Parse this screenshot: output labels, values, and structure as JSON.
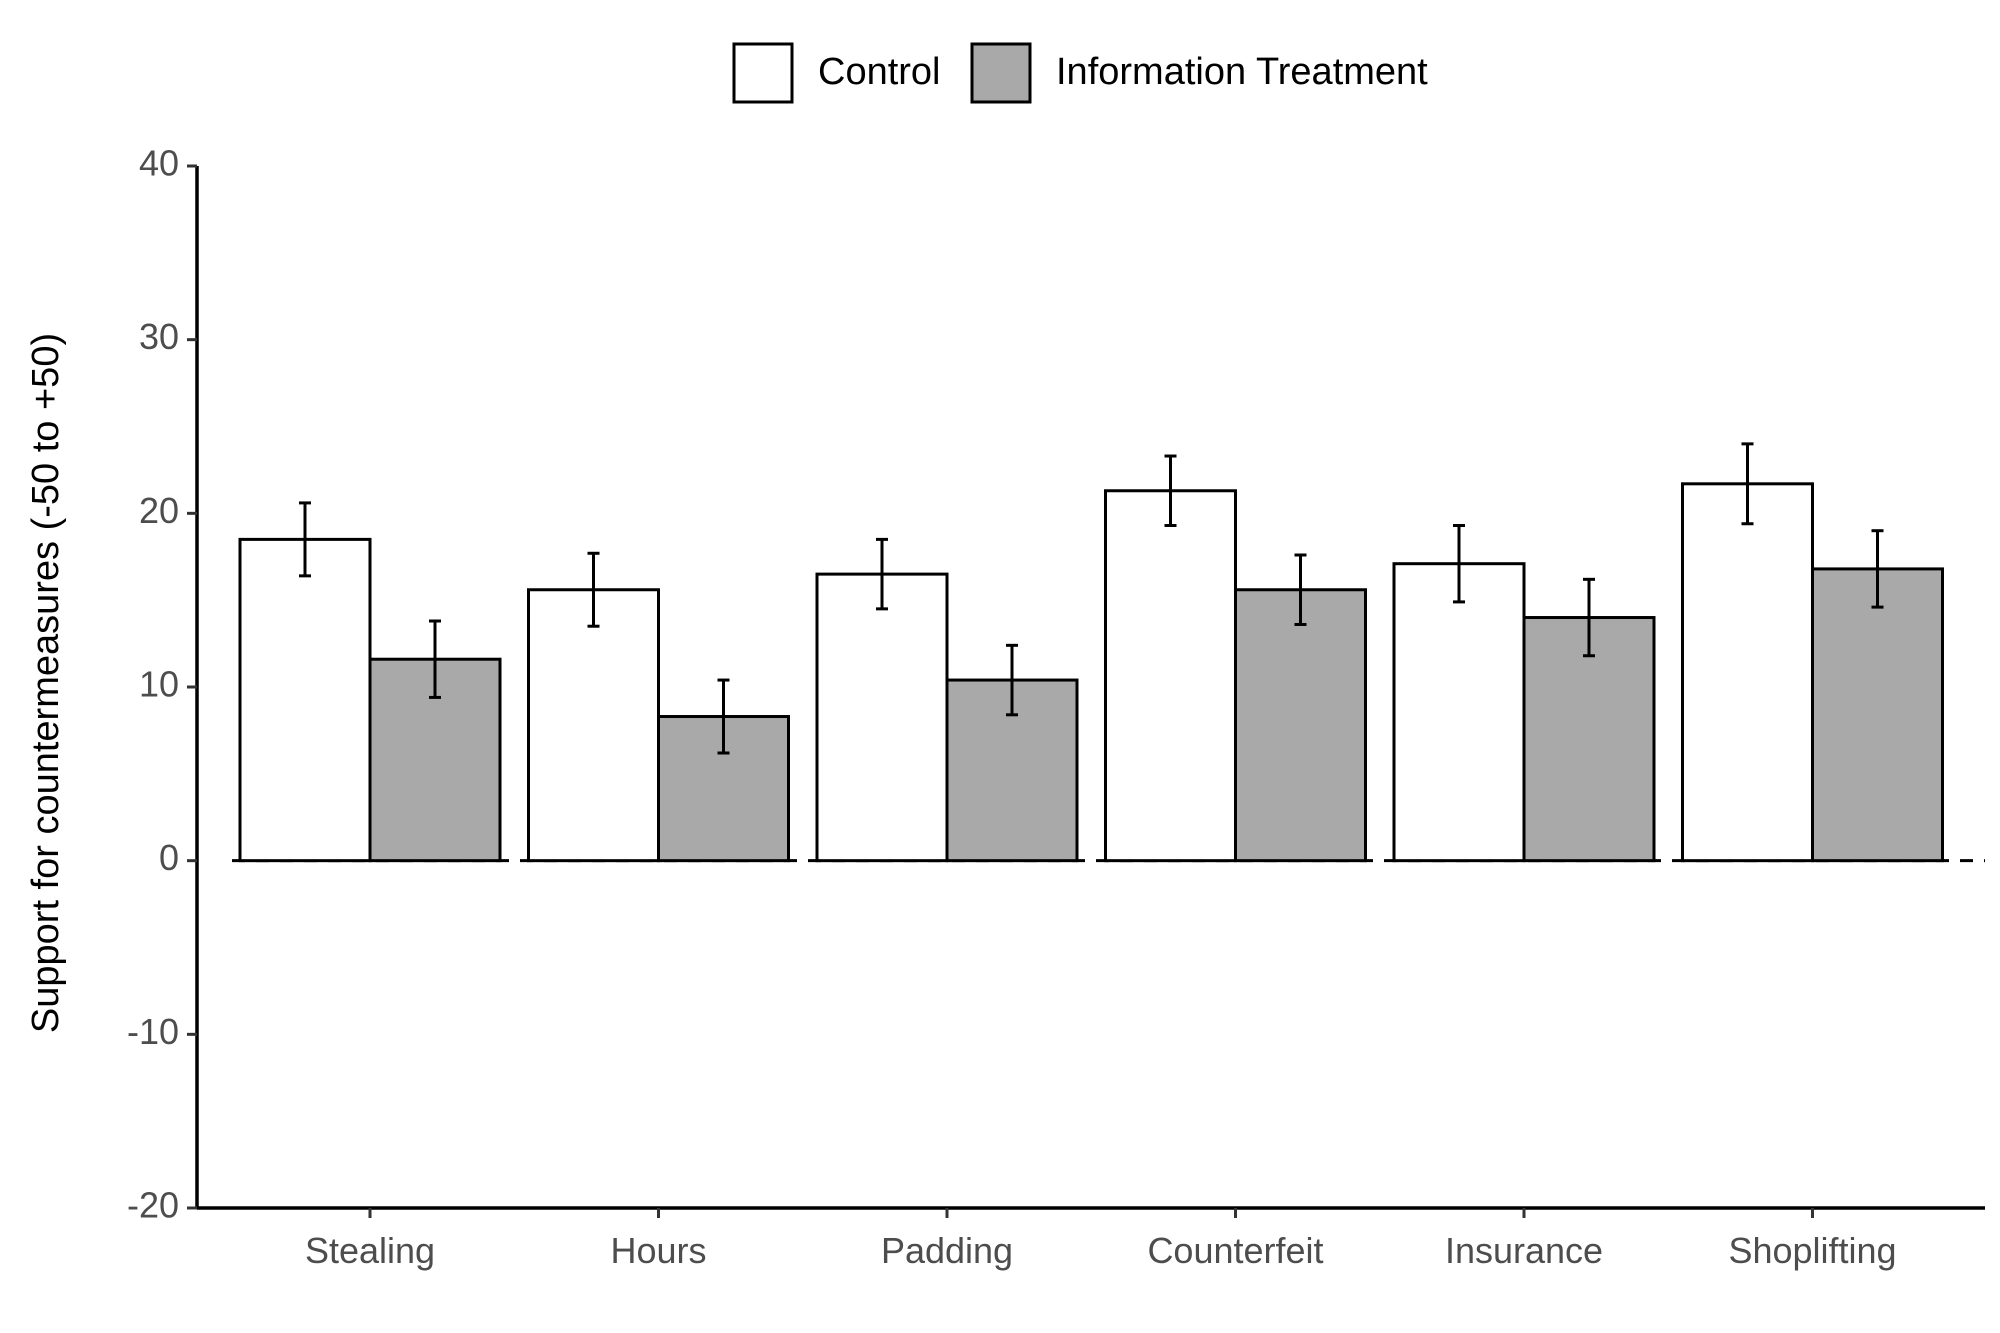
{
  "chart_data": {
    "type": "bar",
    "categories": [
      "Stealing",
      "Hours",
      "Padding",
      "Counterfeit",
      "Insurance",
      "Shoplifting"
    ],
    "series": [
      {
        "name": "Control",
        "color": "#ffffff",
        "values": [
          18.5,
          15.6,
          16.5,
          21.3,
          17.1,
          21.7
        ],
        "error": [
          2.1,
          2.1,
          2.0,
          2.0,
          2.2,
          2.3
        ]
      },
      {
        "name": "Information Treatment",
        "color": "#a9a9a9",
        "values": [
          11.6,
          8.3,
          10.4,
          15.6,
          14.0,
          16.8
        ],
        "error": [
          2.2,
          2.1,
          2.0,
          2.0,
          2.2,
          2.2
        ]
      }
    ],
    "ylabel": "Support for countermeasures (-50 to +50)",
    "xlabel": "",
    "ylim": [
      -20,
      40
    ],
    "yticks": [
      -20,
      -10,
      0,
      10,
      20,
      30,
      40
    ],
    "ytick_labels": [
      "-20",
      "-10",
      "0",
      "10",
      "20",
      "30",
      "40"
    ],
    "reference_line": 0,
    "legend_position": "top",
    "grid": false
  }
}
